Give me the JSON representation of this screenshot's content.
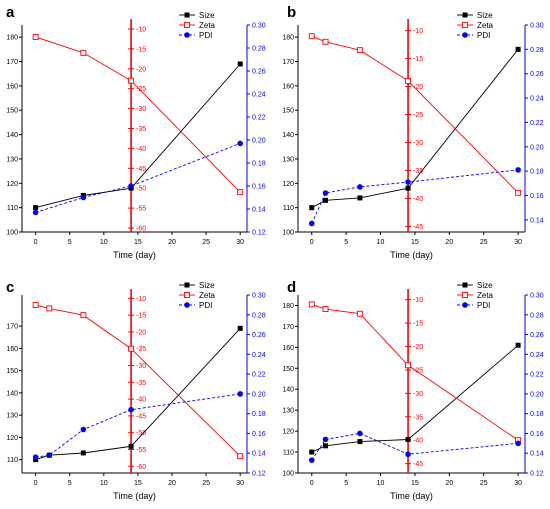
{
  "chart_data": [
    {
      "type": "line",
      "panel_label": "a",
      "xlabel": "Time (day)",
      "x_ticks": [
        0,
        5,
        10,
        15,
        20,
        25,
        30
      ],
      "xlim": [
        -2,
        31
      ],
      "left_axis": {
        "ylim": [
          100,
          185
        ],
        "ticks": [
          100,
          110,
          120,
          130,
          140,
          150,
          160,
          170,
          180
        ],
        "color": "#000000"
      },
      "zeta_axis": {
        "at_x": 14,
        "ylim": [
          -61,
          -9
        ],
        "ticks": [
          -10,
          -15,
          -20,
          -25,
          -30,
          -35,
          -40,
          -45,
          -50,
          -55,
          -60
        ],
        "color": "#ff0000"
      },
      "right_axis": {
        "ylim": [
          0.12,
          0.3
        ],
        "ticks": [
          0.12,
          0.14,
          0.16,
          0.18,
          0.2,
          0.22,
          0.24,
          0.26,
          0.28,
          0.3
        ],
        "color": "#0000ff"
      },
      "legend": [
        "Size",
        "Zeta",
        "PDI"
      ],
      "series": [
        {
          "name": "Size",
          "axis": "left",
          "color": "#000000",
          "marker": "square-filled",
          "dash": "solid",
          "x": [
            0,
            7,
            14,
            30
          ],
          "y": [
            110,
            115,
            118,
            169
          ]
        },
        {
          "name": "Zeta",
          "axis": "zeta",
          "color": "#ff0000",
          "marker": "square-open",
          "dash": "solid",
          "x": [
            0,
            7,
            14,
            30
          ],
          "y": [
            -12,
            -16,
            -23,
            -51
          ]
        },
        {
          "name": "PDI",
          "axis": "right",
          "color": "#0000ff",
          "marker": "circle-filled",
          "dash": "dashed",
          "x": [
            0,
            7,
            14,
            30
          ],
          "y": [
            0.137,
            0.15,
            0.16,
            0.197
          ]
        }
      ]
    },
    {
      "type": "line",
      "panel_label": "b",
      "xlabel": "Time (day)",
      "x_ticks": [
        0,
        5,
        10,
        15,
        20,
        25,
        30
      ],
      "xlim": [
        -2,
        31
      ],
      "left_axis": {
        "ylim": [
          100,
          185
        ],
        "ticks": [
          100,
          110,
          120,
          130,
          140,
          150,
          160,
          170,
          180
        ],
        "color": "#000000"
      },
      "zeta_axis": {
        "at_x": 14,
        "ylim": [
          -46,
          -9
        ],
        "ticks": [
          -10,
          -15,
          -20,
          -25,
          -30,
          -35,
          -40,
          -45
        ],
        "color": "#ff0000"
      },
      "right_axis": {
        "ylim": [
          0.13,
          0.3
        ],
        "ticks": [
          0.14,
          0.16,
          0.18,
          0.2,
          0.22,
          0.24,
          0.26,
          0.28,
          0.3
        ],
        "color": "#0000ff"
      },
      "legend": [
        "Size",
        "Zeta",
        "PDI"
      ],
      "series": [
        {
          "name": "Size",
          "axis": "left",
          "color": "#000000",
          "marker": "square-filled",
          "dash": "solid",
          "x": [
            0,
            2,
            7,
            14,
            30
          ],
          "y": [
            110,
            113,
            114,
            118,
            175
          ]
        },
        {
          "name": "Zeta",
          "axis": "zeta",
          "color": "#ff0000",
          "marker": "square-open",
          "dash": "solid",
          "x": [
            0,
            2,
            7,
            14,
            30
          ],
          "y": [
            -11,
            -12,
            -13.5,
            -19,
            -39
          ]
        },
        {
          "name": "PDI",
          "axis": "right",
          "color": "#0000ff",
          "marker": "circle-filled",
          "dash": "dashed",
          "x": [
            0,
            2,
            7,
            14,
            30
          ],
          "y": [
            0.137,
            0.162,
            0.167,
            0.171,
            0.181
          ]
        }
      ]
    },
    {
      "type": "line",
      "panel_label": "c",
      "xlabel": "Time (day)",
      "x_ticks": [
        0,
        5,
        10,
        15,
        20,
        25,
        30
      ],
      "xlim": [
        -2,
        31
      ],
      "left_axis": {
        "ylim": [
          104,
          184
        ],
        "ticks": [
          110,
          120,
          130,
          140,
          150,
          160,
          170
        ],
        "color": "#000000"
      },
      "zeta_axis": {
        "at_x": 14,
        "ylim": [
          -62,
          -9
        ],
        "ticks": [
          -10,
          -15,
          -20,
          -25,
          -30,
          -35,
          -40,
          -45,
          -50,
          -55,
          -60
        ],
        "color": "#ff0000"
      },
      "right_axis": {
        "ylim": [
          0.12,
          0.3
        ],
        "ticks": [
          0.12,
          0.14,
          0.16,
          0.18,
          0.2,
          0.22,
          0.24,
          0.26,
          0.28,
          0.3
        ],
        "color": "#0000ff"
      },
      "legend": [
        "Size",
        "Zeta",
        "PDI"
      ],
      "series": [
        {
          "name": "Size",
          "axis": "left",
          "color": "#000000",
          "marker": "square-filled",
          "dash": "solid",
          "x": [
            0,
            2,
            7,
            14,
            30
          ],
          "y": [
            110,
            112,
            113,
            116,
            169
          ]
        },
        {
          "name": "Zeta",
          "axis": "zeta",
          "color": "#ff0000",
          "marker": "square-open",
          "dash": "solid",
          "x": [
            0,
            2,
            7,
            14,
            30
          ],
          "y": [
            -12,
            -13,
            -15,
            -25,
            -57
          ]
        },
        {
          "name": "PDI",
          "axis": "right",
          "color": "#0000ff",
          "marker": "circle-filled",
          "dash": "dashed",
          "x": [
            0,
            2,
            7,
            14,
            30
          ],
          "y": [
            0.136,
            0.138,
            0.164,
            0.184,
            0.2
          ]
        }
      ]
    },
    {
      "type": "line",
      "panel_label": "d",
      "xlabel": "Time (day)",
      "x_ticks": [
        0,
        5,
        10,
        15,
        20,
        25,
        30
      ],
      "xlim": [
        -2,
        31
      ],
      "left_axis": {
        "ylim": [
          100,
          185
        ],
        "ticks": [
          100,
          110,
          120,
          130,
          140,
          150,
          160,
          170,
          180
        ],
        "color": "#000000"
      },
      "zeta_axis": {
        "at_x": 14,
        "ylim": [
          -47,
          -9
        ],
        "ticks": [
          -10,
          -15,
          -20,
          -25,
          -30,
          -35,
          -40,
          -45
        ],
        "color": "#ff0000"
      },
      "right_axis": {
        "ylim": [
          0.12,
          0.3
        ],
        "ticks": [
          0.12,
          0.14,
          0.16,
          0.18,
          0.2,
          0.22,
          0.24,
          0.26,
          0.28,
          0.3
        ],
        "color": "#0000ff"
      },
      "legend": [
        "Size",
        "Zeta",
        "PDI"
      ],
      "series": [
        {
          "name": "Size",
          "axis": "left",
          "color": "#000000",
          "marker": "square-filled",
          "dash": "solid",
          "x": [
            0,
            2,
            7,
            14,
            30
          ],
          "y": [
            110,
            113,
            115,
            116,
            161
          ]
        },
        {
          "name": "Zeta",
          "axis": "zeta",
          "color": "#ff0000",
          "marker": "square-open",
          "dash": "solid",
          "x": [
            0,
            2,
            7,
            14,
            30
          ],
          "y": [
            -11,
            -12,
            -13,
            -24,
            -40
          ]
        },
        {
          "name": "PDI",
          "axis": "right",
          "color": "#0000ff",
          "marker": "circle-filled",
          "dash": "dashed",
          "x": [
            0,
            2,
            7,
            14,
            30
          ],
          "y": [
            0.133,
            0.154,
            0.16,
            0.139,
            0.15
          ]
        }
      ]
    }
  ]
}
